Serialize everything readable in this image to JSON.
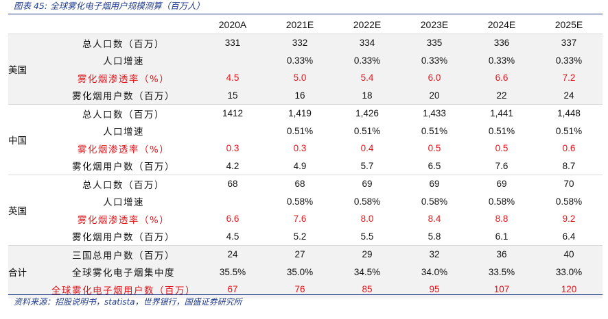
{
  "title": "图表 45:  全球雾化电子烟用户规模测算（百万人）",
  "source": "资料来源：招股说明书，statista，世界银行，国盛证券研究所",
  "colors": {
    "accent": "#1f3a8a",
    "highlight": "#e0151b",
    "shade": "#f2f2f2"
  },
  "table": {
    "headers": [
      "2020A",
      "2021E",
      "2022E",
      "2023E",
      "2024E",
      "2025E"
    ],
    "groups": [
      {
        "name": "美国",
        "rows": [
          {
            "label": "总人口数（百万）",
            "values": [
              "331",
              "332",
              "334",
              "335",
              "336",
              "337"
            ]
          },
          {
            "label": "人口增速",
            "values": [
              "",
              "0.33%",
              "0.33%",
              "0.33%",
              "0.33%",
              "0.33%"
            ]
          },
          {
            "label": "雾化烟渗透率（%）",
            "values": [
              "4.5",
              "5.0",
              "5.4",
              "6.0",
              "6.6",
              "7.2"
            ]
          },
          {
            "label": "雾化烟用户数（百万）",
            "values": [
              "15",
              "16",
              "18",
              "20",
              "22",
              "24"
            ]
          }
        ]
      },
      {
        "name": "中国",
        "rows": [
          {
            "label": "总人口数（百万）",
            "values": [
              "1412",
              "1,419",
              "1,426",
              "1,433",
              "1,441",
              "1,448"
            ]
          },
          {
            "label": "人口增速",
            "values": [
              "",
              "0.51%",
              "0.51%",
              "0.51%",
              "0.51%",
              "0.51%"
            ]
          },
          {
            "label": "雾化烟渗透率（%）",
            "values": [
              "0.3",
              "0.3",
              "0.4",
              "0.5",
              "0.5",
              "0.6"
            ]
          },
          {
            "label": "雾化烟用户数（百万）",
            "values": [
              "4.2",
              "4.9",
              "5.7",
              "6.5",
              "7.6",
              "8.7"
            ]
          }
        ]
      },
      {
        "name": "英国",
        "rows": [
          {
            "label": "总人口数（百万）",
            "values": [
              "68",
              "68",
              "69",
              "69",
              "69",
              "70"
            ]
          },
          {
            "label": "人口增速",
            "values": [
              "",
              "0.58%",
              "0.58%",
              "0.58%",
              "0.58%",
              "0.58%"
            ]
          },
          {
            "label": "雾化烟渗透率（%）",
            "values": [
              "6.6",
              "7.6",
              "8.0",
              "8.4",
              "8.8",
              "9.2"
            ]
          },
          {
            "label": "雾化烟用户数（百万）",
            "values": [
              "4.5",
              "5.2",
              "5.5",
              "5.8",
              "6.1",
              "6.4"
            ]
          }
        ]
      },
      {
        "name": "合计",
        "rows": [
          {
            "label": "三国总用户数（百万）",
            "values": [
              "24",
              "27",
              "29",
              "32",
              "36",
              "40"
            ]
          },
          {
            "label": "全球雾化电子烟集中度",
            "values": [
              "35.5%",
              "35.0%",
              "34.5%",
              "34.0%",
              "33.5%",
              "33.0%"
            ]
          },
          {
            "label": "全球雾化电子烟用户数（百万）",
            "values": [
              "67",
              "76",
              "85",
              "95",
              "107",
              "120"
            ]
          }
        ]
      }
    ]
  }
}
